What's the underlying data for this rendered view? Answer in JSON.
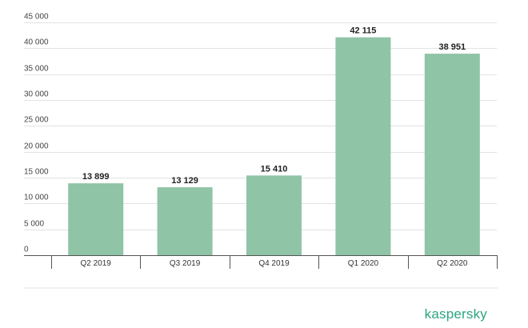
{
  "brand": {
    "name": "kaspersky",
    "color": "#2aa57f"
  },
  "colors": {
    "bar": "#8fc4a6",
    "grid": "#e3e3e3",
    "axis": "#555555"
  },
  "chart_data": {
    "type": "bar",
    "categories": [
      "Q2 2019",
      "Q3 2019",
      "Q4 2019",
      "Q1 2020",
      "Q2 2020"
    ],
    "values": [
      13899,
      13129,
      15410,
      42115,
      38951
    ],
    "data_labels": [
      "13 899",
      "13 129",
      "15 410",
      "42 115",
      "38 951"
    ],
    "yticks": [
      0,
      5000,
      10000,
      15000,
      20000,
      25000,
      30000,
      35000,
      40000,
      45000
    ],
    "ytick_labels": [
      "0",
      "5 000",
      "10 000",
      "15 000",
      "20 000",
      "25 000",
      "30 000",
      "35 000",
      "40 000",
      "45 000"
    ],
    "ylim": [
      0,
      45000
    ],
    "grid": true,
    "legend": false
  }
}
